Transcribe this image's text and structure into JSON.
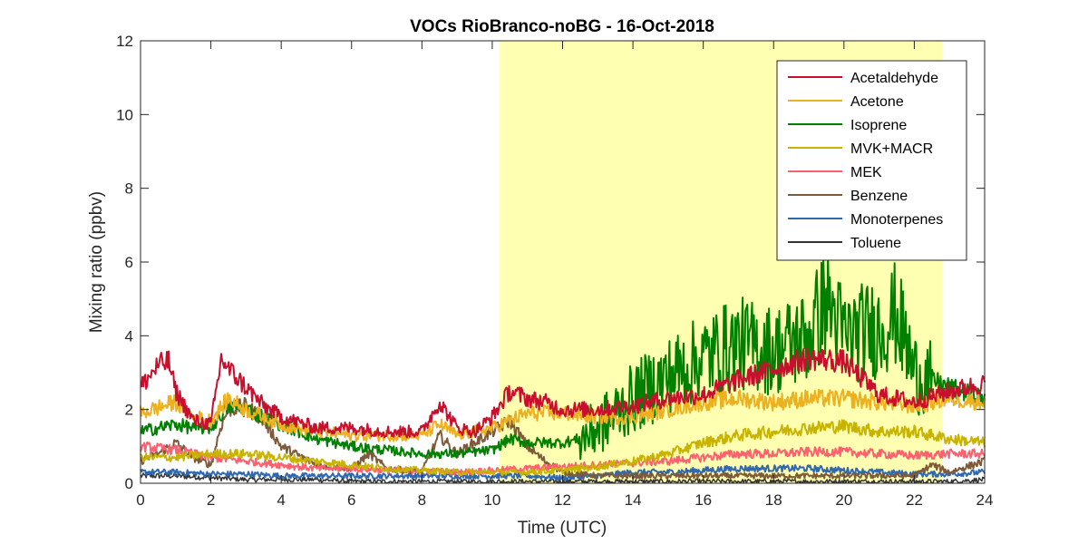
{
  "chart_data": {
    "type": "line",
    "title": "VOCs RioBranco-noBG - 16-Oct-2018",
    "xlabel": "Time (UTC)",
    "ylabel": "Mixing ratio (ppbv)",
    "xlim": [
      0,
      24
    ],
    "ylim": [
      0,
      12
    ],
    "xticks": [
      "0",
      "2",
      "4",
      "6",
      "8",
      "10",
      "12",
      "14",
      "16",
      "18",
      "20",
      "22",
      "24"
    ],
    "yticks": [
      "0",
      "2",
      "4",
      "6",
      "8",
      "10",
      "12"
    ],
    "grid": false,
    "legend_position": "top-right",
    "shaded_interval": {
      "x": [
        10.2,
        22.8
      ],
      "color": "#ffffb2"
    },
    "series": [
      {
        "name": "Acetaldehyde",
        "color": "#c8102e",
        "x": [
          0,
          0.5,
          0.8,
          1,
          1.5,
          2,
          2.3,
          2.5,
          3,
          3.5,
          4,
          5,
          6,
          7,
          8,
          8.5,
          9,
          9.5,
          10,
          10.5,
          11,
          11.5,
          12,
          13,
          14,
          15,
          16,
          17,
          18,
          19,
          20,
          21,
          22,
          23,
          24
        ],
        "y": [
          2.6,
          3.2,
          3.3,
          2.5,
          1.7,
          1.6,
          3.4,
          3.1,
          2.6,
          2.1,
          1.8,
          1.5,
          1.5,
          1.4,
          1.4,
          2.2,
          1.5,
          1.4,
          1.8,
          2.5,
          2.3,
          2.2,
          2.0,
          2.0,
          2.1,
          2.3,
          2.4,
          2.8,
          3.1,
          3.4,
          3.3,
          2.4,
          2.2,
          2.5,
          2.7
        ]
      },
      {
        "name": "Acetone",
        "color": "#edb120",
        "x": [
          0,
          1,
          1.5,
          2,
          2.5,
          3,
          4,
          5,
          6,
          7,
          8,
          8.5,
          9,
          10,
          11,
          12,
          13,
          14,
          15,
          16,
          17,
          18,
          19,
          20,
          21,
          22,
          23,
          24
        ],
        "y": [
          1.9,
          2.2,
          1.8,
          1.7,
          2.3,
          2.0,
          1.6,
          1.4,
          1.3,
          1.3,
          1.3,
          1.6,
          1.3,
          1.5,
          1.9,
          1.9,
          1.8,
          1.8,
          2.0,
          2.2,
          2.3,
          2.2,
          2.3,
          2.3,
          2.2,
          2.1,
          2.3,
          2.2
        ]
      },
      {
        "name": "Isoprene",
        "color": "#008000",
        "x": [
          0,
          0.5,
          1,
          1.5,
          2,
          2.5,
          3,
          4,
          5,
          6,
          7,
          8,
          9,
          10,
          10.5,
          11,
          12,
          12.5,
          13,
          14,
          15,
          16,
          17,
          18,
          19,
          19.5,
          20,
          21,
          21.5,
          22,
          23,
          24
        ],
        "y": [
          1.4,
          1.5,
          1.6,
          1.5,
          1.5,
          2.1,
          2.0,
          1.6,
          1.2,
          1.0,
          0.9,
          0.8,
          0.8,
          0.9,
          1.2,
          1.1,
          1.1,
          1.2,
          1.5,
          2.3,
          2.9,
          3.4,
          3.8,
          3.6,
          4.0,
          5.0,
          4.0,
          4.2,
          4.6,
          3.0,
          2.6,
          2.3
        ]
      },
      {
        "name": "MVK+MACR",
        "color": "#c8b400",
        "x": [
          0,
          1,
          2,
          3,
          4,
          5,
          6,
          7,
          8,
          9,
          10,
          11,
          12,
          13,
          14,
          15,
          16,
          17,
          18,
          19,
          20,
          21,
          22,
          23,
          24
        ],
        "y": [
          0.7,
          0.7,
          0.8,
          0.8,
          0.7,
          0.6,
          0.5,
          0.4,
          0.35,
          0.3,
          0.3,
          0.3,
          0.35,
          0.45,
          0.6,
          0.8,
          1.1,
          1.3,
          1.4,
          1.5,
          1.55,
          1.4,
          1.4,
          1.2,
          1.1
        ]
      },
      {
        "name": "MEK",
        "color": "#ff6070",
        "x": [
          0,
          1,
          2,
          3,
          4,
          5,
          6,
          7,
          8,
          9,
          10,
          11,
          12,
          13,
          14,
          15,
          16,
          17,
          18,
          19,
          20,
          21,
          22,
          23,
          24
        ],
        "y": [
          1.0,
          0.9,
          0.7,
          0.6,
          0.5,
          0.4,
          0.4,
          0.35,
          0.35,
          0.3,
          0.35,
          0.4,
          0.45,
          0.5,
          0.55,
          0.6,
          0.7,
          0.8,
          0.8,
          0.85,
          0.85,
          0.8,
          0.75,
          0.8,
          0.8
        ]
      },
      {
        "name": "Benzene",
        "color": "#7e5a3a",
        "x": [
          0,
          0.5,
          1,
          1.5,
          2,
          2.3,
          2.5,
          3,
          3.5,
          4,
          5,
          6,
          6.5,
          7,
          8,
          8.5,
          9,
          10,
          10.5,
          11,
          11.5,
          12,
          13,
          14,
          16,
          18,
          20,
          22,
          22.5,
          23,
          24
        ],
        "y": [
          0.6,
          0.8,
          1.1,
          0.7,
          0.5,
          1.6,
          2.0,
          2.1,
          1.7,
          1.0,
          0.5,
          0.4,
          0.8,
          0.4,
          0.3,
          1.3,
          0.8,
          1.4,
          1.7,
          1.0,
          0.6,
          0.3,
          0.2,
          0.2,
          0.2,
          0.2,
          0.2,
          0.2,
          0.5,
          0.3,
          0.6
        ]
      },
      {
        "name": "Monoterpenes",
        "color": "#2f68b0",
        "x": [
          0,
          1,
          2,
          3,
          4,
          5,
          6,
          7,
          8,
          9,
          10,
          11,
          12,
          13,
          14,
          15,
          16,
          17,
          18,
          19,
          20,
          21,
          22,
          23,
          24
        ],
        "y": [
          0.3,
          0.3,
          0.25,
          0.25,
          0.2,
          0.2,
          0.2,
          0.2,
          0.2,
          0.2,
          0.2,
          0.2,
          0.15,
          0.2,
          0.3,
          0.3,
          0.35,
          0.4,
          0.4,
          0.4,
          0.35,
          0.3,
          0.25,
          0.25,
          0.3
        ]
      },
      {
        "name": "Toluene",
        "color": "#333333",
        "x": [
          0,
          1,
          2,
          3,
          4,
          5,
          6,
          7,
          8,
          9,
          10,
          11,
          12,
          13,
          14,
          15,
          16,
          17,
          18,
          19,
          20,
          21,
          22,
          23,
          24
        ],
        "y": [
          0.2,
          0.2,
          0.15,
          0.1,
          0.1,
          0.1,
          0.05,
          0.05,
          0.05,
          0.05,
          0.05,
          0.05,
          0.05,
          0.05,
          0.05,
          0.05,
          0.05,
          0.05,
          0.05,
          0.05,
          0.05,
          0.05,
          0.05,
          0.05,
          0.1
        ]
      }
    ]
  }
}
